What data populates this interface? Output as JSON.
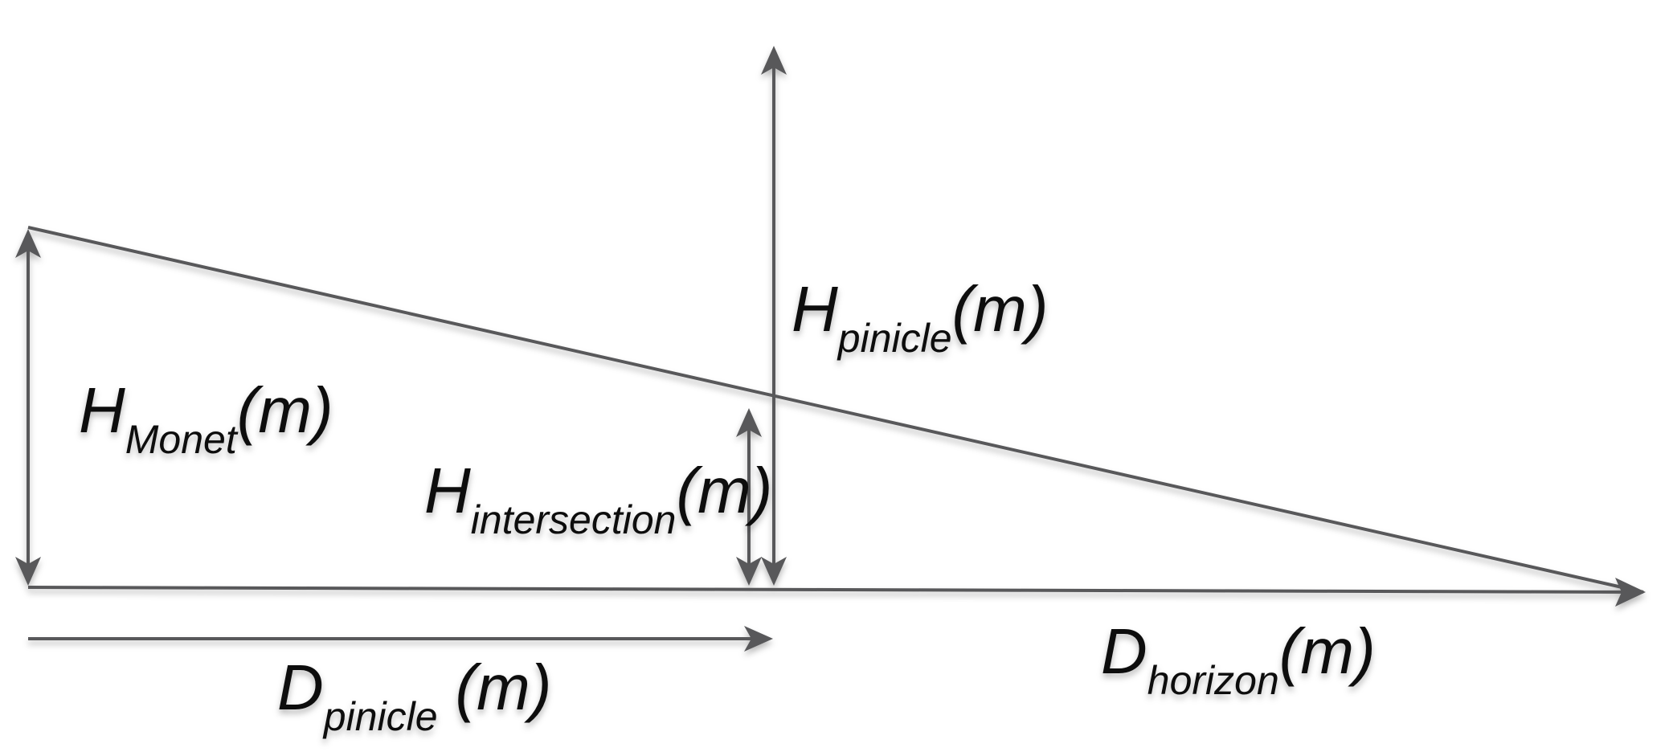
{
  "labels": {
    "h_monet": {
      "symbol": "H",
      "subscript": "Monet",
      "unit": "(m)"
    },
    "h_pinicle": {
      "symbol": "H",
      "subscript": "pinicle",
      "unit": "(m)"
    },
    "h_intersection": {
      "symbol": "H",
      "subscript": "intersection",
      "unit": "(m)"
    },
    "d_pinicle": {
      "symbol": "D",
      "subscript": "pinicle",
      "unit": "(m)"
    },
    "d_horizon": {
      "symbol": "D",
      "subscript": "horizon",
      "unit": "(m)"
    }
  },
  "colors": {
    "line": "#58585a",
    "text": "#111111",
    "shadow": "#bdbdbd"
  }
}
